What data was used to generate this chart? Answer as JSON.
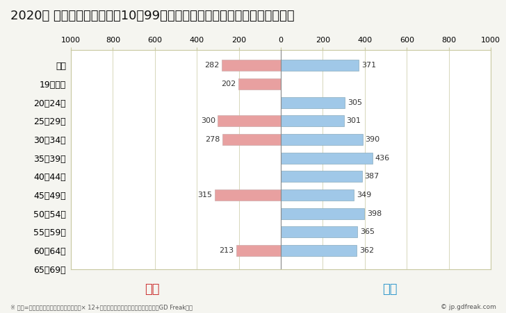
{
  "title": "2020年 民間企業（従業者数10～99人）フルタイム労働者の男女別平均年収",
  "categories": [
    "全体",
    "19歳以下",
    "20～24歳",
    "25～29歳",
    "30～34歳",
    "35～39歳",
    "40～44歳",
    "45～49歳",
    "50～54歳",
    "55～59歳",
    "60～64歳",
    "65～69歳"
  ],
  "female_values": [
    282,
    202,
    0,
    300,
    278,
    0,
    0,
    315,
    0,
    0,
    213,
    0
  ],
  "male_values": [
    371,
    0,
    305,
    301,
    390,
    436,
    387,
    349,
    398,
    365,
    362,
    0
  ],
  "female_color": "#e8a0a0",
  "male_color": "#a0c8e8",
  "female_label": "女性",
  "male_label": "男性",
  "female_label_color": "#cc3333",
  "male_label_color": "#3399cc",
  "xlim": 1000,
  "background_color": "#f5f5f0",
  "plot_bg_color": "#ffffff",
  "title_fontsize": 13,
  "bar_label_fontsize": 8,
  "legend_fontsize": 13,
  "footnote": "※ 年収=「きまって支給する現金給与額」× 12+「年間賞与その他特別給与額」としてGD Freak推計",
  "copyright": "© jp.gdfreak.com",
  "border_color": "#c8c8a0",
  "grid_color": "#c8c8a0"
}
